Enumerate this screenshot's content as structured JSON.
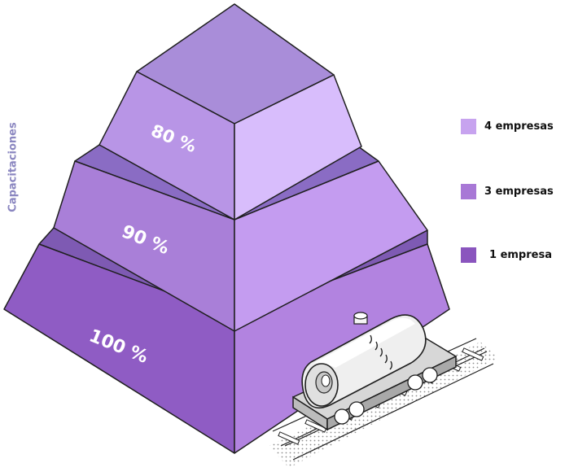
{
  "axis_label": "Capacitaciones",
  "tiers": [
    {
      "percent": "80 %",
      "front": "#b895e6",
      "top": "#a98dd9",
      "right": "#d8bdfc",
      "band": "#8a6cc4"
    },
    {
      "percent": "90 %",
      "front": "#a97fd8",
      "right": "#c49cf0",
      "band": "#7e5ab3"
    },
    {
      "percent": "100 %",
      "front": "#8f5cc4",
      "right": "#b283e0",
      "band": "#64448f"
    }
  ],
  "legend": [
    {
      "label": "4 empresas",
      "color": "#c7a3ef"
    },
    {
      "label": "3 empresas",
      "color": "#a878d6"
    },
    {
      "label": "1 empresa",
      "color": "#8a55be"
    }
  ],
  "colors": {
    "outline": "#1f1f1f"
  },
  "icons": {
    "train": "tank-car-icon"
  }
}
